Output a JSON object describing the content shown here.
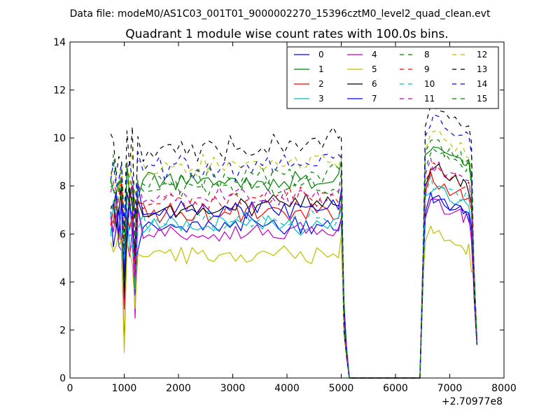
{
  "figure": {
    "suptitle": "Data file: modeM0/AS1C03_001T01_9000002270_15396cztM0_level2_quad_clean.evt"
  },
  "chart_data": {
    "type": "line",
    "title": "Quadrant 1 module wise count rates with 100.0s bins.",
    "xlabel": "",
    "ylabel": "",
    "x_offset_label": "+2.70977e8",
    "xlim": [
      0,
      8000
    ],
    "ylim": [
      0,
      14
    ],
    "xticks": [
      0,
      1000,
      2000,
      3000,
      4000,
      5000,
      6000,
      7000,
      8000
    ],
    "xtick_labels": [
      "0",
      "1000",
      "2000",
      "3000",
      "4000",
      "5000",
      "6000",
      "7000",
      "8000"
    ],
    "yticks": [
      0,
      2,
      4,
      6,
      8,
      10,
      12,
      14
    ],
    "ytick_labels": [
      "0",
      "2",
      "4",
      "6",
      "8",
      "10",
      "12",
      "14"
    ],
    "legend_position": "top-right",
    "legend_columns": 4,
    "x": [
      750,
      800,
      850,
      900,
      950,
      1000,
      1050,
      1100,
      1150,
      1200,
      1250,
      1350,
      1450,
      1550,
      1650,
      1750,
      1850,
      1950,
      2050,
      2150,
      2250,
      2350,
      2450,
      2550,
      2650,
      2750,
      2850,
      2950,
      3050,
      3150,
      3250,
      3350,
      3450,
      3550,
      3650,
      3750,
      3850,
      3950,
      4050,
      4150,
      4250,
      4350,
      4450,
      4550,
      4650,
      4750,
      4850,
      4950,
      5000,
      5050,
      5100,
      5150,
      6450,
      6500,
      6550,
      6650,
      6700,
      6800,
      6900,
      7000,
      7100,
      7200,
      7250,
      7300,
      7350,
      7400,
      7450,
      7500
    ],
    "x_ranges": [
      [
        750,
        5150
      ],
      [
        6450,
        7500
      ]
    ],
    "series": [
      {
        "name": "0",
        "color": "#0000ff",
        "dash": "solid",
        "level": 6.4,
        "amp": 0.35,
        "slope": 0.0,
        "peak": 7.6
      },
      {
        "name": "1",
        "color": "#008000",
        "dash": "solid",
        "level": 8.1,
        "amp": 0.35,
        "slope": 0.15,
        "peak": 9.7
      },
      {
        "name": "2",
        "color": "#ff0000",
        "dash": "solid",
        "level": 6.8,
        "amp": 0.35,
        "slope": 0.1,
        "peak": 8.3
      },
      {
        "name": "3",
        "color": "#00bfbf",
        "dash": "solid",
        "level": 6.4,
        "amp": 0.35,
        "slope": 0.0,
        "peak": 8.0
      },
      {
        "name": "4",
        "color": "#bf00bf",
        "dash": "solid",
        "level": 6.0,
        "amp": 0.3,
        "slope": 0.1,
        "peak": 7.4
      },
      {
        "name": "5",
        "color": "#bfbf00",
        "dash": "solid",
        "level": 5.1,
        "amp": 0.3,
        "slope": 0.0,
        "peak": 6.1
      },
      {
        "name": "6",
        "color": "#000000",
        "dash": "solid",
        "level": 7.1,
        "amp": 0.35,
        "slope": 0.1,
        "peak": 8.8
      },
      {
        "name": "7",
        "color": "#0000ff",
        "dash": "solid",
        "level": 7.0,
        "amp": 0.35,
        "slope": 0.05,
        "peak": 7.6
      },
      {
        "name": "8",
        "color": "#008000",
        "dash": "dashed",
        "level": 7.9,
        "amp": 0.3,
        "slope": 0.1,
        "peak": 9.5
      },
      {
        "name": "9",
        "color": "#ff0000",
        "dash": "dashed",
        "level": 7.4,
        "amp": 0.35,
        "slope": 0.1,
        "peak": 8.8
      },
      {
        "name": "10",
        "color": "#00bfbf",
        "dash": "dashed",
        "level": 6.5,
        "amp": 0.35,
        "slope": 0.05,
        "peak": 8.2
      },
      {
        "name": "11",
        "color": "#bf00bf",
        "dash": "dashed",
        "level": 7.5,
        "amp": 0.35,
        "slope": 0.1,
        "peak": 8.9
      },
      {
        "name": "12",
        "color": "#bfbf00",
        "dash": "dashed",
        "level": 8.8,
        "amp": 0.35,
        "slope": 0.1,
        "peak": 10.2
      },
      {
        "name": "13",
        "color": "#000000",
        "dash": "dashed",
        "level": 9.4,
        "amp": 0.4,
        "slope": 0.5,
        "peak": 11.2
      },
      {
        "name": "14",
        "color": "#0000ff",
        "dash": "dashed",
        "level": 8.6,
        "amp": 0.45,
        "slope": 0.4,
        "peak": 10.8
      },
      {
        "name": "15",
        "color": "#008000",
        "dash": "dashed",
        "level": 8.3,
        "amp": 0.35,
        "slope": 0.2,
        "peak": 9.8
      }
    ]
  }
}
